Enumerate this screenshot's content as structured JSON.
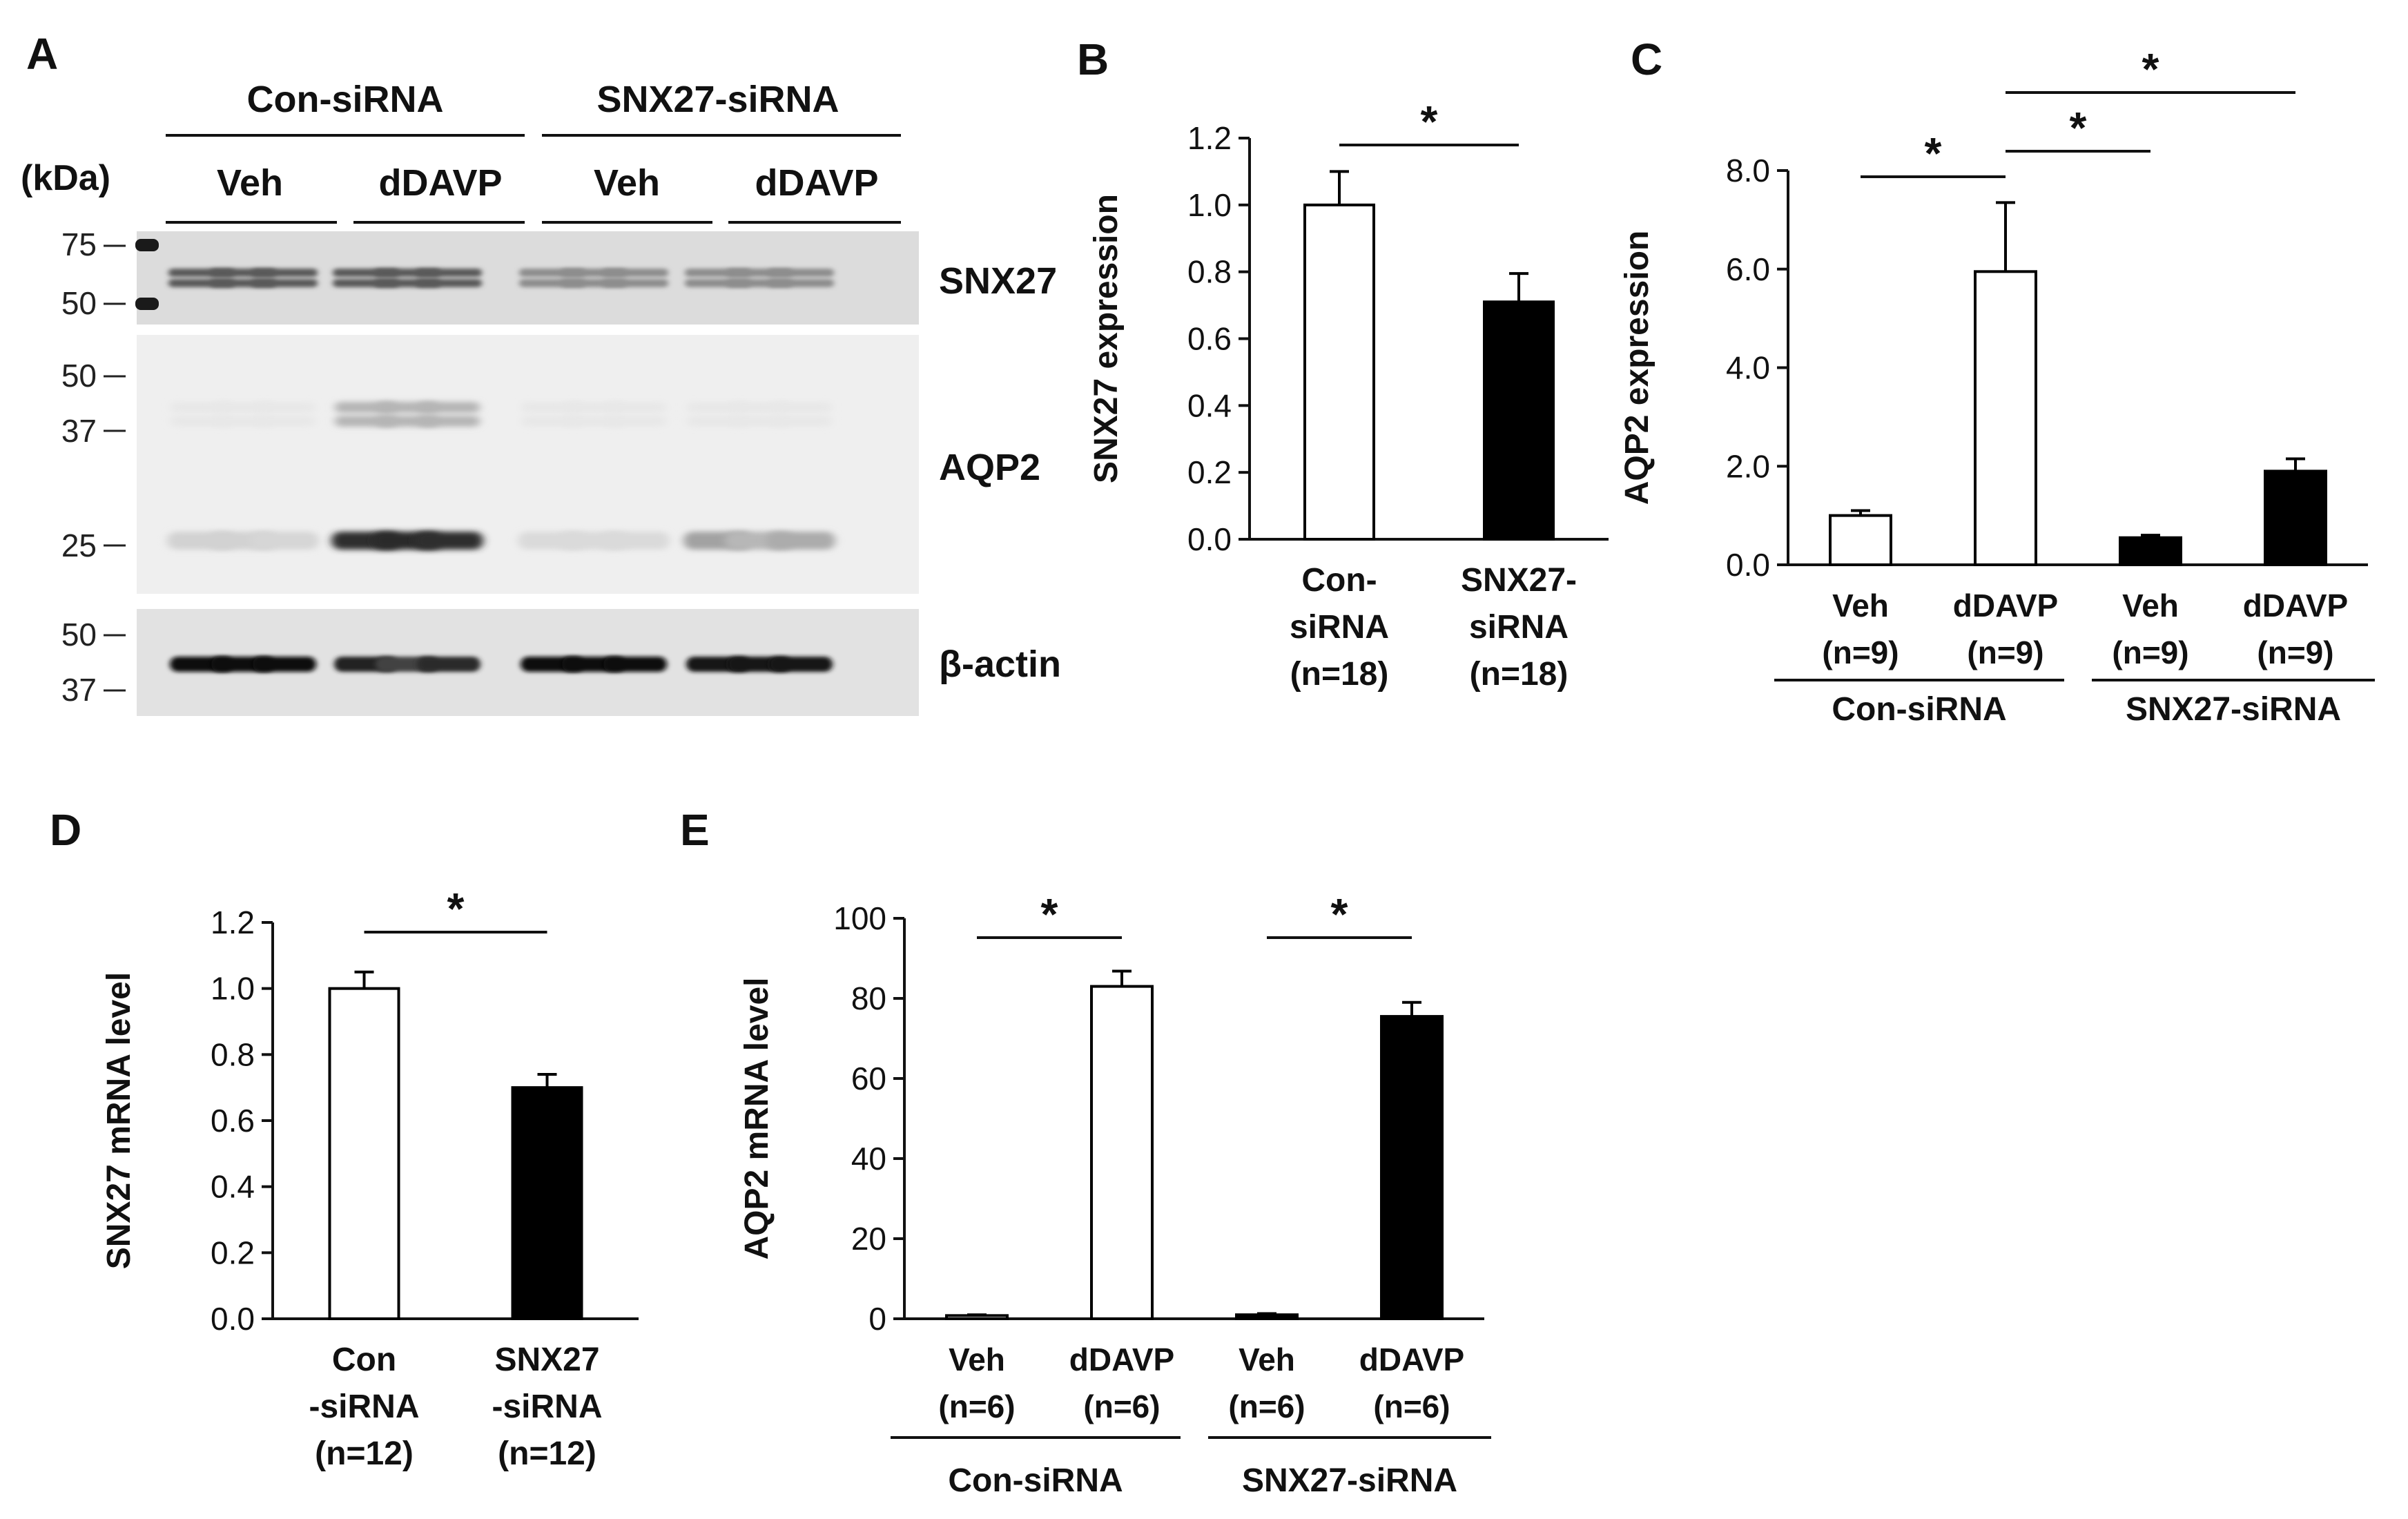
{
  "panel_a": {
    "panel_letter": "A",
    "groups": [
      "Con-siRNA",
      "SNX27-siRNA"
    ],
    "treatments": [
      "Veh",
      "dDAVP",
      "Veh",
      "dDAVP"
    ],
    "kda_label": "(kDa)",
    "blots": [
      {
        "label": "SNX27",
        "markers": [
          "75",
          "50"
        ]
      },
      {
        "label": "AQP2",
        "markers": [
          "50",
          "37",
          "25"
        ]
      },
      {
        "label": "β-actin",
        "markers": [
          "50",
          "37"
        ]
      }
    ],
    "band_intensity": {
      "SNX27": [
        1,
        1,
        1,
        1,
        1,
        1,
        0.65,
        0.65,
        0.65,
        0.65,
        0.65,
        0.65
      ],
      "AQP2": [
        0.12,
        0.12,
        0.1,
        0.9,
        0.92,
        0.9,
        0.08,
        0.08,
        0.08,
        0.35,
        0.25,
        0.3
      ],
      "beta_actin": [
        1,
        1,
        1,
        0.9,
        0.75,
        0.85,
        1,
        1,
        1,
        0.95,
        0.95,
        0.95
      ]
    }
  },
  "chart_data": [
    {
      "panel": "B",
      "type": "bar",
      "categories": [
        [
          "Con-",
          "siRNA",
          "(n=18)"
        ],
        [
          "SNX27-",
          "siRNA",
          "(n=18)"
        ]
      ],
      "values": [
        1.0,
        0.71
      ],
      "errors": [
        0.1,
        0.085
      ],
      "fills": [
        "#ffffff",
        "#000000"
      ],
      "ylabel": "SNX27 expression",
      "ylim": [
        0,
        1.2
      ],
      "yticks": [
        "0.0",
        "0.2",
        "0.4",
        "0.6",
        "0.8",
        "1.0",
        "1.2"
      ],
      "significance": [
        {
          "from": 0,
          "to": 1,
          "label": "*"
        }
      ]
    },
    {
      "panel": "C",
      "type": "bar",
      "categories": [
        [
          "Veh",
          "(n=9)"
        ],
        [
          "dDAVP",
          "(n=9)"
        ],
        [
          "Veh",
          "(n=9)"
        ],
        [
          "dDAVP",
          "(n=9)"
        ]
      ],
      "values": [
        1.0,
        5.95,
        0.55,
        1.9
      ],
      "errors": [
        0.1,
        1.4,
        0.05,
        0.25
      ],
      "fills": [
        "#ffffff",
        "#ffffff",
        "#000000",
        "#000000"
      ],
      "ylabel": "AQP2 expression",
      "ylim": [
        0,
        8.0
      ],
      "yticks": [
        "0.0",
        "2.0",
        "4.0",
        "6.0",
        "8.0"
      ],
      "group_labels": [
        {
          "label": "Con-siRNA",
          "from": 0,
          "to": 1
        },
        {
          "label": "SNX27-siRNA",
          "from": 2,
          "to": 3
        }
      ],
      "significance": [
        {
          "from": 0,
          "to": 1,
          "label": "*"
        },
        {
          "from": 1,
          "to": 2,
          "label": "*"
        },
        {
          "from": 1,
          "to": 3,
          "label": "*"
        }
      ]
    },
    {
      "panel": "D",
      "type": "bar",
      "categories": [
        [
          "Con",
          "-siRNA",
          "(n=12)"
        ],
        [
          "SNX27",
          "-siRNA",
          "(n=12)"
        ]
      ],
      "values": [
        1.0,
        0.7
      ],
      "errors": [
        0.05,
        0.04
      ],
      "fills": [
        "#ffffff",
        "#000000"
      ],
      "ylabel": "SNX27 mRNA level",
      "ylim": [
        0,
        1.2
      ],
      "yticks": [
        "0.0",
        "0.2",
        "0.4",
        "0.6",
        "0.8",
        "1.0",
        "1.2"
      ],
      "significance": [
        {
          "from": 0,
          "to": 1,
          "label": "*"
        }
      ]
    },
    {
      "panel": "E",
      "type": "bar",
      "categories": [
        [
          "Veh",
          "(n=6)"
        ],
        [
          "dDAVP",
          "(n=6)"
        ],
        [
          "Veh",
          "(n=6)"
        ],
        [
          "dDAVP",
          "(n=6)"
        ]
      ],
      "values": [
        0.8,
        83,
        1.0,
        75.5
      ],
      "errors": [
        0.2,
        3.8,
        0.3,
        3.5
      ],
      "fills": [
        "#ffffff",
        "#ffffff",
        "#000000",
        "#000000"
      ],
      "ylabel": "AQP2 mRNA level",
      "ylim": [
        0,
        100
      ],
      "yticks": [
        "0",
        "20",
        "40",
        "60",
        "80",
        "100"
      ],
      "group_labels": [
        {
          "label": "Con-siRNA",
          "from": 0,
          "to": 1
        },
        {
          "label": "SNX27-siRNA",
          "from": 2,
          "to": 3
        }
      ],
      "significance": [
        {
          "from": 0,
          "to": 1,
          "label": "*"
        },
        {
          "from": 2,
          "to": 3,
          "label": "*"
        }
      ]
    }
  ]
}
